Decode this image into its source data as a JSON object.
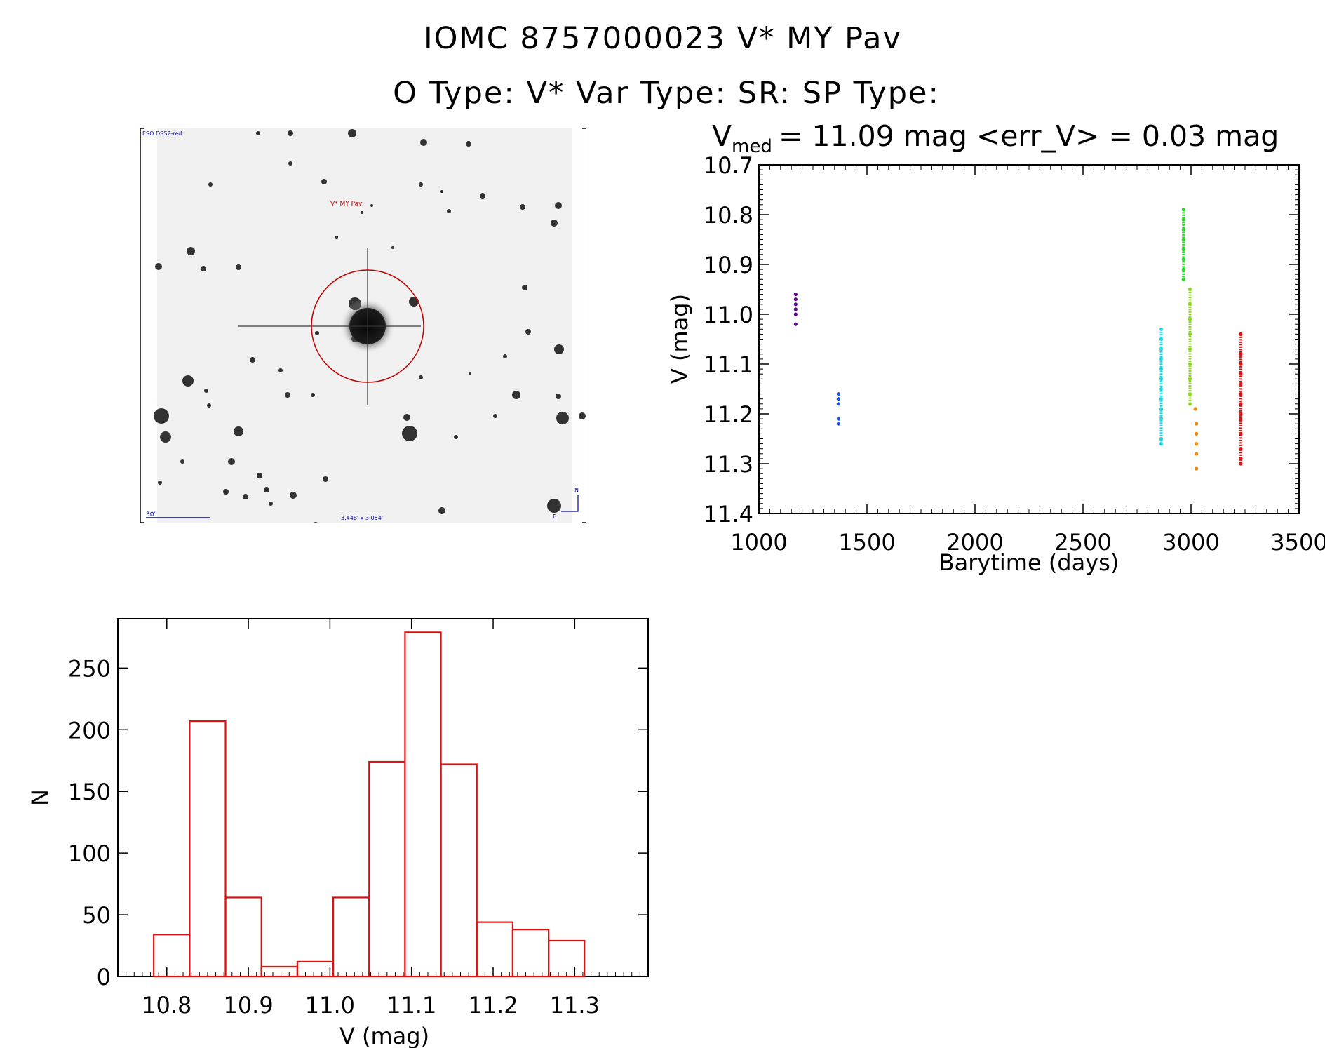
{
  "header": {
    "title_line1": "IOMC 8757000023    V* MY Pav",
    "title_line2": "O Type: V*  Var Type: SR:  SP Type:"
  },
  "thumbnail": {
    "corner_label": "ESO DSS2-red",
    "target_label": "V* MY Pav",
    "scale_label": "30\"",
    "size_label": "3.448' x 3.054'",
    "north_label": "N",
    "east_label": "E",
    "colors": {
      "border": "#000000",
      "circle": "#c00000",
      "blue_text": "#0000a0"
    }
  },
  "chart_data": [
    {
      "type": "scatter",
      "title_main": "V",
      "title_sub": "med",
      "title_rest": " = 11.09 mag <err_V> = 0.03 mag",
      "xlabel": "Barytime (days)",
      "ylabel": "V (mag)",
      "xlim": [
        1000,
        3500
      ],
      "ylim": [
        11.4,
        10.7
      ],
      "y_inverted": true,
      "xticks": [
        1000,
        1500,
        2000,
        2500,
        3000,
        3500
      ],
      "xtick_labels": [
        "1000",
        "1500",
        "2000",
        "2500",
        "3000",
        "3500"
      ],
      "yticks": [
        10.7,
        10.8,
        10.9,
        11.0,
        11.1,
        11.2,
        11.3,
        11.4
      ],
      "ytick_labels": [
        "10.7",
        "10.8",
        "10.9",
        "11.0",
        "11.1",
        "11.2",
        "11.3",
        "11.4"
      ],
      "series": [
        {
          "color": "#5b0a8c",
          "points": [
            [
              1170,
              10.96
            ],
            [
              1170,
              10.97
            ],
            [
              1170,
              10.98
            ],
            [
              1170,
              10.99
            ],
            [
              1170,
              11.0
            ],
            [
              1170,
              11.02
            ]
          ]
        },
        {
          "color": "#1a53e0",
          "points": [
            [
              1368,
              11.16
            ],
            [
              1368,
              11.17
            ],
            [
              1368,
              11.18
            ],
            [
              1368,
              11.21
            ],
            [
              1368,
              11.22
            ]
          ]
        },
        {
          "color": "#18d8e8",
          "points": [
            [
              2862,
              11.03
            ],
            [
              2862,
              11.05
            ],
            [
              2862,
              11.07
            ],
            [
              2862,
              11.09
            ],
            [
              2862,
              11.11
            ],
            [
              2862,
              11.13
            ],
            [
              2862,
              11.15
            ],
            [
              2862,
              11.17
            ],
            [
              2862,
              11.19
            ],
            [
              2862,
              11.21
            ],
            [
              2862,
              11.25
            ],
            [
              2862,
              11.26
            ]
          ]
        },
        {
          "color": "#2ad82a",
          "points": [
            [
              2965,
              10.79
            ],
            [
              2965,
              10.81
            ],
            [
              2965,
              10.83
            ],
            [
              2965,
              10.85
            ],
            [
              2965,
              10.87
            ],
            [
              2965,
              10.89
            ],
            [
              2965,
              10.91
            ],
            [
              2965,
              10.93
            ]
          ]
        },
        {
          "color": "#90d820",
          "points": [
            [
              2995,
              10.95
            ],
            [
              2995,
              10.98
            ],
            [
              2995,
              11.01
            ],
            [
              2995,
              11.04
            ],
            [
              2995,
              11.07
            ],
            [
              2995,
              11.1
            ],
            [
              2995,
              11.13
            ],
            [
              2995,
              11.16
            ],
            [
              2995,
              11.18
            ]
          ]
        },
        {
          "color": "#f08c10",
          "points": [
            [
              3020,
              11.19
            ],
            [
              3025,
              11.22
            ],
            [
              3025,
              11.24
            ],
            [
              3025,
              11.26
            ],
            [
              3025,
              11.28
            ],
            [
              3025,
              11.31
            ]
          ]
        },
        {
          "color": "#e01010",
          "points": [
            [
              3230,
              11.04
            ],
            [
              3230,
              11.08
            ],
            [
              3230,
              11.1
            ],
            [
              3230,
              11.12
            ],
            [
              3230,
              11.14
            ],
            [
              3230,
              11.16
            ],
            [
              3230,
              11.18
            ],
            [
              3230,
              11.2
            ],
            [
              3230,
              11.21
            ],
            [
              3230,
              11.24
            ],
            [
              3230,
              11.27
            ],
            [
              3230,
              11.29
            ],
            [
              3230,
              11.3
            ]
          ]
        }
      ]
    },
    {
      "type": "bar",
      "subtype": "histogram",
      "xlabel": "V (mag)",
      "ylabel": "N",
      "xlim": [
        10.74,
        11.39
      ],
      "ylim": [
        0,
        290
      ],
      "xticks": [
        10.8,
        10.9,
        11.0,
        11.1,
        11.2,
        11.3
      ],
      "xtick_labels": [
        "10.8",
        "10.9",
        "11.0",
        "11.1",
        "11.2",
        "11.3"
      ],
      "yticks": [
        0,
        50,
        100,
        150,
        200,
        250
      ],
      "ytick_labels": [
        "0",
        "50",
        "100",
        "150",
        "200",
        "250"
      ],
      "bin_edges": [
        10.784,
        10.828,
        10.872,
        10.916,
        10.96,
        11.004,
        11.048,
        11.092,
        11.136,
        11.18,
        11.224,
        11.268,
        11.312
      ],
      "values": [
        34,
        207,
        64,
        8,
        12,
        64,
        174,
        279,
        172,
        44,
        38,
        29
      ],
      "bar_color": "#e01010"
    }
  ]
}
